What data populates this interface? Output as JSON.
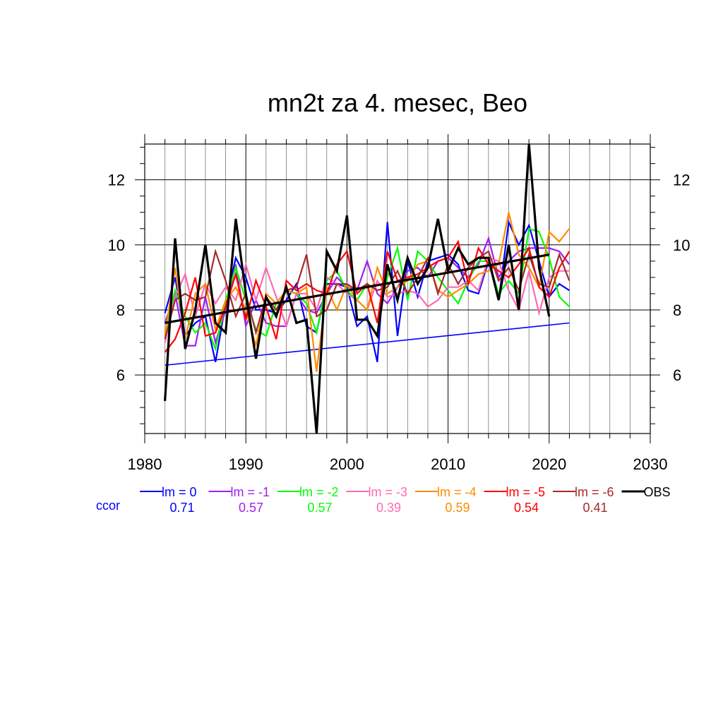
{
  "chart_data": {
    "type": "line",
    "title": "mn2t za 4. mesec, Beo",
    "xlabel": "",
    "ylabel": "",
    "xlim": [
      1980,
      2030
    ],
    "ylim": [
      4.2,
      13.1
    ],
    "x_ticks": [
      1980,
      1990,
      2000,
      2010,
      2020,
      2030
    ],
    "y_ticks": [
      6,
      8,
      10,
      12
    ],
    "grid": true,
    "legend_position": "bottom",
    "ccor_label": "ccor",
    "series": [
      {
        "name": "lm = 0",
        "ccor": "0.71",
        "color": "#0000ff",
        "years_start": 1982,
        "values": [
          7.9,
          9.0,
          7.2,
          7.6,
          7.8,
          6.4,
          8.2,
          9.6,
          9.0,
          8.0,
          8.0,
          7.9,
          8.3,
          8.8,
          7.5,
          7.3,
          8.8,
          8.8,
          8.7,
          7.5,
          7.8,
          6.4,
          10.7,
          7.2,
          9.5,
          8.4,
          9.5,
          9.6,
          9.7,
          9.4,
          8.6,
          8.5,
          9.5,
          8.3,
          10.7,
          10.0,
          10.6,
          9.5,
          8.4,
          8.8,
          8.6
        ],
        "trend": [
          6.3,
          7.6
        ]
      },
      {
        "name": "lm = -1",
        "ccor": "0.57",
        "color": "#a020f0",
        "years_start": 1982,
        "values": [
          7.6,
          8.5,
          6.9,
          6.9,
          8.4,
          7.0,
          8.0,
          9.4,
          7.5,
          8.3,
          7.6,
          7.5,
          7.5,
          8.5,
          8.0,
          7.9,
          8.5,
          9.0,
          8.7,
          8.6,
          9.5,
          8.5,
          8.2,
          8.7,
          9.2,
          9.3,
          9.0,
          9.5,
          9.6,
          9.3,
          9.0,
          9.4,
          10.2,
          9.0,
          9.5,
          9.8,
          9.9,
          9.9,
          9.9,
          9.8,
          9.4
        ]
      },
      {
        "name": "lm = -2",
        "ccor": "0.57",
        "color": "#00ff00",
        "years_start": 1982,
        "values": [
          7.3,
          8.6,
          7.8,
          7.3,
          7.6,
          6.8,
          8.3,
          9.3,
          8.3,
          7.4,
          7.2,
          8.2,
          8.6,
          8.5,
          8.2,
          7.3,
          8.9,
          9.2,
          8.6,
          8.3,
          8.8,
          7.6,
          9.0,
          9.9,
          8.3,
          9.8,
          9.5,
          9.0,
          8.6,
          8.2,
          8.9,
          9.5,
          9.5,
          8.5,
          8.9,
          8.5,
          10.5,
          10.4,
          9.6,
          8.4,
          8.1
        ]
      },
      {
        "name": "lm = -3",
        "ccor": "0.39",
        "color": "#ff69b4",
        "years_start": 1982,
        "values": [
          7.0,
          8.4,
          9.1,
          7.8,
          8.8,
          8.2,
          8.7,
          8.3,
          9.4,
          8.3,
          9.3,
          8.4,
          7.5,
          8.5,
          8.5,
          8.0,
          9.0,
          8.8,
          8.5,
          8.3,
          8.0,
          8.9,
          8.4,
          8.5,
          8.6,
          8.5,
          8.1,
          8.3,
          8.7,
          8.7,
          8.9,
          8.6,
          9.6,
          9.5,
          8.6,
          8.0,
          9.2,
          7.9,
          9.0,
          9.2,
          9.2
        ]
      },
      {
        "name": "lm = -4",
        "ccor": "0.59",
        "color": "#ff8c00",
        "years_start": 1982,
        "values": [
          7.2,
          9.3,
          7.1,
          8.5,
          8.8,
          7.4,
          8.3,
          8.7,
          8.0,
          6.9,
          8.5,
          8.2,
          8.6,
          8.5,
          8.7,
          6.1,
          8.7,
          8.0,
          8.8,
          8.3,
          8.0,
          9.3,
          8.5,
          8.7,
          8.9,
          9.4,
          9.5,
          8.6,
          8.4,
          8.6,
          8.8,
          9.1,
          9.2,
          9.4,
          11.0,
          9.7,
          9.3,
          8.7,
          10.4,
          10.1,
          10.5
        ]
      },
      {
        "name": "lm = -5",
        "ccor": "0.54",
        "color": "#ff0000",
        "years_start": 1982,
        "values": [
          6.7,
          7.1,
          7.9,
          9.0,
          7.2,
          7.3,
          8.1,
          9.1,
          7.7,
          8.9,
          8.1,
          7.1,
          8.9,
          8.6,
          8.8,
          8.6,
          8.5,
          9.4,
          9.8,
          8.5,
          8.8,
          7.6,
          9.8,
          8.9,
          9.0,
          9.1,
          9.3,
          9.5,
          9.6,
          10.1,
          8.8,
          9.9,
          9.4,
          9.2,
          9.0,
          9.4,
          9.9,
          8.7,
          8.4,
          9.3,
          9.8
        ]
      },
      {
        "name": "lm = -6",
        "ccor": "0.41",
        "color": "#a52a2a",
        "years_start": 1982,
        "values": [
          7.1,
          8.3,
          8.5,
          8.3,
          8.4,
          9.8,
          8.9,
          7.8,
          8.5,
          7.3,
          8.4,
          8.0,
          8.6,
          8.7,
          9.7,
          7.8,
          8.0,
          8.8,
          8.8,
          8.6,
          8.8,
          8.6,
          8.7,
          9.2,
          8.5,
          9.0,
          9.6,
          8.5,
          9.4,
          8.8,
          9.3,
          9.6,
          9.8,
          8.9,
          9.3,
          8.6,
          9.7,
          8.8,
          8.7,
          9.7,
          8.9
        ]
      },
      {
        "name": "OBS",
        "ccor": "",
        "color": "#000000",
        "years_start": 1982,
        "values": [
          5.2,
          10.2,
          6.8,
          8.0,
          10.0,
          7.6,
          7.3,
          10.8,
          8.5,
          6.5,
          8.4,
          7.8,
          8.7,
          7.6,
          7.7,
          4.2,
          9.8,
          9.2,
          10.9,
          7.7,
          7.7,
          7.2,
          9.4,
          8.3,
          9.6,
          8.8,
          9.3,
          10.8,
          9.2,
          9.9,
          9.4,
          9.6,
          9.6,
          8.3,
          10.0,
          8.0,
          13.1,
          9.3,
          7.8
        ],
        "trend": [
          7.6,
          9.7
        ]
      }
    ]
  }
}
